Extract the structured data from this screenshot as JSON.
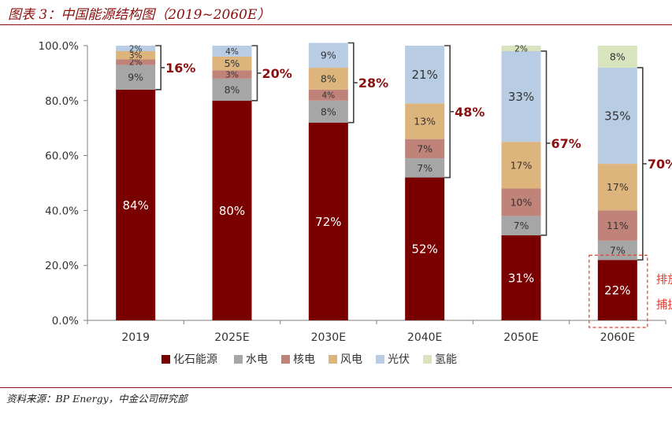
{
  "figure": {
    "title": "图表 3：中国能源结构图（2019~2060E）",
    "source": "资料来源：BP Energy，中金公司研究部"
  },
  "chart_data": {
    "type": "bar",
    "stacked": true,
    "categories": [
      "2019",
      "2025E",
      "2030E",
      "2040E",
      "2050E",
      "2060E"
    ],
    "ylim": [
      0,
      100
    ],
    "yticks": [
      "0.0%",
      "20.0%",
      "40.0%",
      "60.0%",
      "80.0%",
      "100.0%"
    ],
    "series": [
      {
        "name": "化石能源",
        "color": "#7a0000",
        "values": [
          84,
          80,
          72,
          52,
          31,
          22
        ],
        "labels": [
          "84%",
          "80%",
          "72%",
          "52%",
          "31%",
          "22%"
        ]
      },
      {
        "name": "水电",
        "color": "#a6a6a6",
        "values": [
          9,
          8,
          8,
          7,
          7,
          7
        ],
        "labels": [
          "9%",
          "8%",
          "8%",
          "7%",
          "7%",
          "7%"
        ]
      },
      {
        "name": "核电",
        "color": "#c0837a",
        "values": [
          2,
          3,
          4,
          7,
          10,
          11
        ],
        "labels": [
          "2%",
          "3%",
          "4%",
          "7%",
          "10%",
          "11%"
        ]
      },
      {
        "name": "风电",
        "color": "#ddb47c",
        "values": [
          3,
          5,
          8,
          13,
          17,
          17
        ],
        "labels": [
          "3%",
          "5%",
          "8%",
          "13%",
          "17%",
          "17%"
        ]
      },
      {
        "name": "光伏",
        "color": "#b8cce4",
        "values": [
          2,
          4,
          9,
          21,
          33,
          35
        ],
        "labels": [
          "2%",
          "4%",
          "9%",
          "21%",
          "33%",
          "35%"
        ]
      },
      {
        "name": "氢能",
        "color": "#d7e4bd",
        "values": [
          0,
          0,
          0,
          0,
          2,
          8
        ],
        "labels": [
          "",
          "",
          "",
          "",
          "2%",
          "8%"
        ]
      }
    ],
    "brackets": [
      "16%",
      "20%",
      "28%",
      "48%",
      "67%",
      "70%"
    ],
    "annotation": [
      "排放量由碳",
      "捕捉覆盖"
    ],
    "legend_position": "bottom",
    "grid": false
  }
}
